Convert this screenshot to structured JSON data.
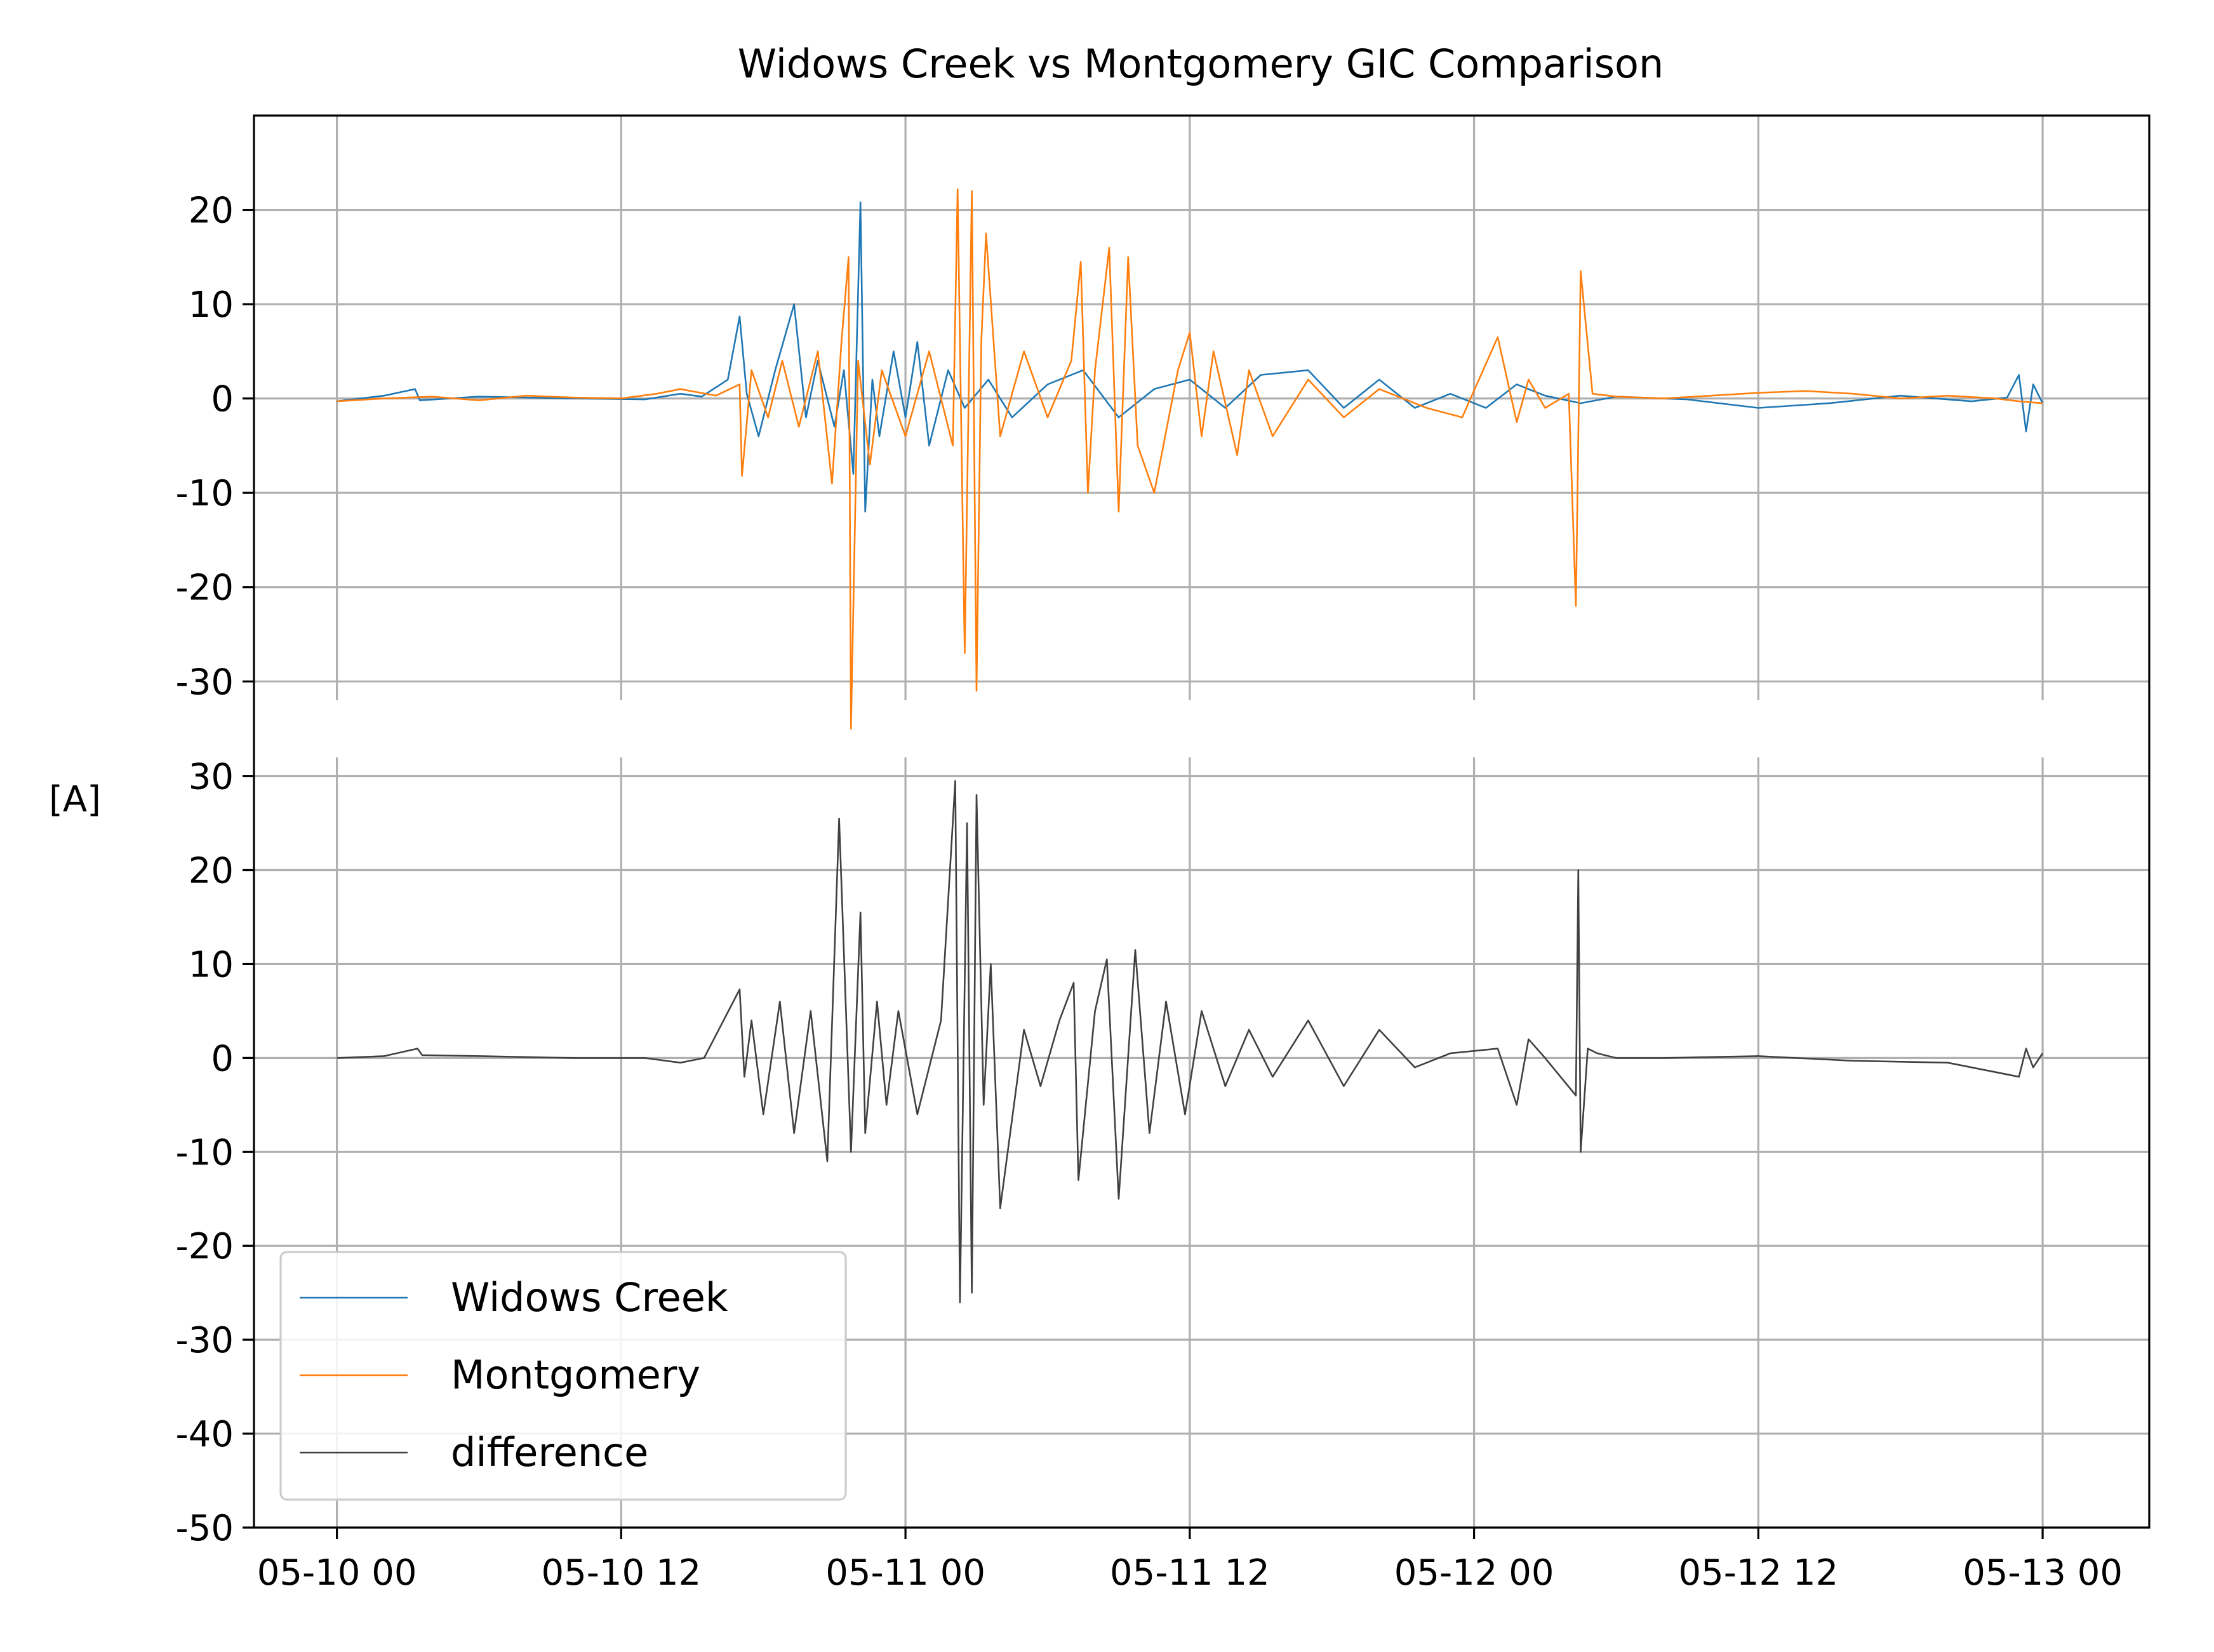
{
  "chart_data": {
    "type": "line",
    "title": "Widows Creek vs Montgomery GIC Comparison",
    "ylabel": "[A]",
    "xlabel": "",
    "x_tick_labels": [
      "05-10 00",
      "05-10 12",
      "05-11 00",
      "05-11 12",
      "05-12 00",
      "05-12 12",
      "05-13 00"
    ],
    "x_ticks_hours": [
      0,
      12,
      24,
      36,
      48,
      60,
      72
    ],
    "xlim_hours": [
      -3.5,
      76.5
    ],
    "grid": true,
    "legend_position": "lower-left",
    "panels": [
      {
        "name": "top",
        "ylim": [
          -32,
          30
        ],
        "y_ticks": [
          -30,
          -20,
          -10,
          0,
          10,
          20
        ],
        "y_tick_labels": [
          "-30",
          "-20",
          "-10",
          "0",
          "10",
          "20"
        ],
        "series": [
          "Widows Creek",
          "Montgomery"
        ]
      },
      {
        "name": "bottom",
        "ylim": [
          -50,
          32
        ],
        "y_ticks": [
          -50,
          -40,
          -30,
          -20,
          -10,
          0,
          10,
          20,
          30
        ],
        "y_tick_labels": [
          "-50",
          "-40",
          "-30",
          "-20",
          "-10",
          "0",
          "10",
          "20",
          "30"
        ],
        "series": [
          "difference"
        ]
      }
    ],
    "series": [
      {
        "name": "Widows Creek",
        "color": "#1f77b4",
        "x_hours": [
          0,
          2,
          3.3,
          3.5,
          6,
          10,
          13,
          14.5,
          15.4,
          16.5,
          17,
          17.3,
          17.8,
          18.5,
          19.3,
          19.8,
          20.3,
          21,
          21.4,
          21.8,
          22.1,
          22.3,
          22.6,
          22.9,
          23.5,
          24,
          24.5,
          25,
          25.8,
          26.5,
          27.5,
          28.5,
          30,
          31.5,
          33,
          34.5,
          36,
          37.5,
          39,
          41,
          42.5,
          44,
          45.5,
          47,
          48.5,
          49.8,
          51,
          52.5,
          54,
          57,
          60,
          63,
          66,
          69,
          70.5,
          71,
          71.3,
          71.6,
          72
        ],
        "y": [
          -0.3,
          0.3,
          1.0,
          -0.2,
          0.2,
          0.0,
          -0.1,
          0.5,
          0.2,
          2.0,
          8.7,
          0.5,
          -4.0,
          3.0,
          10.0,
          -2.0,
          4.0,
          -3.0,
          3.0,
          -8.0,
          20.8,
          -12.0,
          2.0,
          -4.0,
          5.0,
          -2.0,
          6.0,
          -5.0,
          3.0,
          -1.0,
          2.0,
          -2.0,
          1.5,
          3.0,
          -2.0,
          1.0,
          2.0,
          -1.0,
          2.5,
          3.0,
          -1.0,
          2.0,
          -1.0,
          0.5,
          -1.0,
          1.5,
          0.3,
          -0.5,
          0.2,
          -0.1,
          -1.0,
          -0.5,
          0.3,
          -0.3,
          0.1,
          2.5,
          -3.5,
          1.5,
          -0.5
        ]
      },
      {
        "name": "Montgomery",
        "color": "#ff7f0e",
        "x_hours": [
          0,
          2,
          4,
          6,
          8,
          10,
          12,
          13.5,
          14.5,
          16,
          17,
          17.1,
          17.5,
          18.2,
          18.8,
          19.5,
          20.3,
          20.9,
          21.3,
          21.6,
          21.7,
          22,
          22.5,
          23,
          24,
          25,
          26,
          26.2,
          26.5,
          26.8,
          27,
          27.2,
          27.4,
          28,
          29,
          30,
          31,
          31.4,
          31.7,
          32,
          32.6,
          33,
          33.4,
          33.8,
          34.5,
          35.5,
          36,
          36.5,
          37,
          38,
          38.5,
          39.5,
          41,
          42.5,
          44,
          46,
          47.5,
          49,
          49.8,
          50.3,
          51,
          52,
          52.3,
          52.5,
          53,
          54,
          56,
          58,
          60,
          62,
          64,
          66,
          68,
          70,
          71,
          72
        ],
        "y": [
          -0.3,
          0.0,
          0.2,
          -0.2,
          0.3,
          0.1,
          0.0,
          0.5,
          1.0,
          0.3,
          1.5,
          -8.2,
          3.0,
          -2.0,
          4.0,
          -3.0,
          5.0,
          -9.0,
          6.0,
          15.0,
          -35.0,
          4.0,
          -7.0,
          3.0,
          -4.0,
          5.0,
          -5.0,
          22.2,
          -27.0,
          22.0,
          -31.0,
          6.0,
          17.5,
          -4.0,
          5.0,
          -2.0,
          4.0,
          14.5,
          -10.0,
          3.0,
          16.0,
          -12.0,
          15.0,
          -5.0,
          -10.0,
          3.0,
          7.0,
          -4.0,
          5.0,
          -6.0,
          3.0,
          -4.0,
          2.0,
          -2.0,
          1.0,
          -1.0,
          -2.0,
          6.5,
          -2.5,
          2.0,
          -1.0,
          0.5,
          -22.0,
          13.5,
          0.5,
          0.2,
          0.0,
          0.3,
          0.6,
          0.8,
          0.5,
          0.0,
          0.3,
          0.0,
          -0.3,
          -0.5
        ]
      },
      {
        "name": "difference",
        "color": "#404040",
        "x_hours": [
          0,
          2,
          3.4,
          3.6,
          6,
          10,
          13,
          14.5,
          15.5,
          17,
          17.2,
          17.5,
          18,
          18.7,
          19.3,
          20,
          20.7,
          21.2,
          21.7,
          22.1,
          22.3,
          22.8,
          23.2,
          23.7,
          24.5,
          25.5,
          26.1,
          26.3,
          26.6,
          26.8,
          27,
          27.3,
          27.6,
          28,
          29,
          29.7,
          30.5,
          31.1,
          31.3,
          32,
          32.5,
          33,
          33.7,
          34.3,
          35,
          35.8,
          36.5,
          37.5,
          38.5,
          39.5,
          41,
          42.5,
          44,
          45.5,
          47,
          49,
          49.8,
          50.3,
          51,
          52.3,
          52.4,
          52.5,
          52.8,
          53.2,
          54,
          56,
          60,
          64,
          68,
          71,
          71.3,
          71.6,
          72
        ],
        "y": [
          0.0,
          0.2,
          1.0,
          0.3,
          0.2,
          0.0,
          0.0,
          -0.5,
          0.0,
          7.3,
          -2.0,
          4.0,
          -6.0,
          6.0,
          -8.0,
          5.0,
          -11.0,
          25.5,
          -10.0,
          15.5,
          -8.0,
          6.0,
          -5.0,
          5.0,
          -6.0,
          4.0,
          29.5,
          -26.0,
          25.0,
          -25.0,
          28.0,
          -5.0,
          10.0,
          -16.0,
          3.0,
          -3.0,
          4.0,
          8.0,
          -13.0,
          5.0,
          10.5,
          -15.0,
          11.5,
          -8.0,
          6.0,
          -6.0,
          5.0,
          -3.0,
          3.0,
          -2.0,
          4.0,
          -3.0,
          3.0,
          -1.0,
          0.5,
          1.0,
          -5.0,
          2.0,
          0.0,
          -4.0,
          20.0,
          -10.0,
          1.0,
          0.5,
          0.0,
          0.0,
          0.2,
          -0.3,
          -0.5,
          -2.0,
          1.0,
          -1.0,
          0.5
        ]
      }
    ]
  }
}
